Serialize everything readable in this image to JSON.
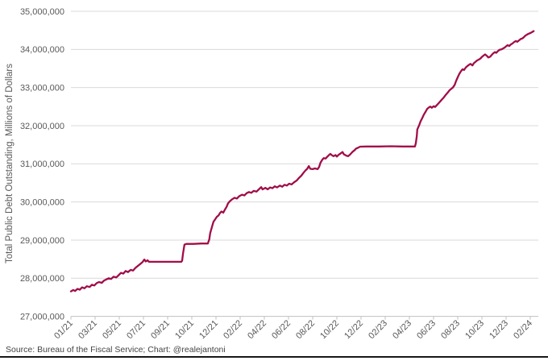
{
  "page": {
    "background": "#ffffff"
  },
  "footer": {
    "source_text": "Source: Bureau of the Fiscal Service; Chart: @realejantoni"
  },
  "chart": {
    "y_axis_title": "Total Public Debt Outstanding, Millions of Dollars",
    "y_ticks": [
      "35,000,000",
      "34,000,000",
      "33,000,000",
      "32,000,000",
      "31,000,000",
      "30,000,000",
      "29,000,000",
      "28,000,000",
      "27,000,000"
    ],
    "x_ticks": [
      "01/21",
      "03/21",
      "05/21",
      "07/21",
      "09/21",
      "10/21",
      "12/21",
      "02/22",
      "04/22",
      "06/22",
      "08/22",
      "10/22",
      "12/22",
      "02/23",
      "04/23",
      "06/23",
      "08/23",
      "10/23",
      "12/23",
      "02/24"
    ],
    "colors": {
      "line": "#a10d49",
      "grid": "#d9d9d9",
      "axis": "#c0c0c0",
      "tick_text": "#595959",
      "y_title_text": "#595959",
      "footer_text": "#444444",
      "bottom_rule": "#000000"
    }
  },
  "chart_data": {
    "type": "line",
    "title": "",
    "xlabel": "",
    "ylabel": "Total Public Debt Outstanding, Millions of Dollars",
    "unit": "millions of US dollars",
    "ylim": [
      27000000,
      35000000
    ],
    "y_tick_step": 1000000,
    "grid": "horizontal",
    "legend": "none",
    "x_tick_labels": [
      "01/21",
      "03/21",
      "05/21",
      "07/21",
      "09/21",
      "10/21",
      "12/21",
      "02/22",
      "04/22",
      "06/22",
      "08/22",
      "10/22",
      "12/22",
      "02/23",
      "04/23",
      "06/23",
      "08/23",
      "10/23",
      "12/23",
      "02/24"
    ],
    "values_at_ticks_millions": [
      27660000,
      27840000,
      28090000,
      28450000,
      28430000,
      28900000,
      29580000,
      30160000,
      30360000,
      30470000,
      30860000,
      31190000,
      31450000,
      31460000,
      31460000,
      32510000,
      33280000,
      33800000,
      34080000,
      34430000
    ],
    "value_scale_note": "series point v values are in trillions of dollars; multiply by 1,000,000 to get axis units (millions)",
    "series": [
      {
        "name": "Total Public Debt Outstanding",
        "points": [
          [
            0.0,
            27.655
          ],
          [
            0.005,
            27.69
          ],
          [
            0.009,
            27.665
          ],
          [
            0.014,
            27.72
          ],
          [
            0.019,
            27.7
          ],
          [
            0.024,
            27.76
          ],
          [
            0.029,
            27.735
          ],
          [
            0.034,
            27.79
          ],
          [
            0.04,
            27.77
          ],
          [
            0.045,
            27.83
          ],
          [
            0.05,
            27.81
          ],
          [
            0.055,
            27.87
          ],
          [
            0.06,
            27.9
          ],
          [
            0.066,
            27.88
          ],
          [
            0.071,
            27.94
          ],
          [
            0.076,
            27.97
          ],
          [
            0.081,
            28.0
          ],
          [
            0.086,
            27.98
          ],
          [
            0.091,
            28.04
          ],
          [
            0.097,
            28.02
          ],
          [
            0.102,
            28.08
          ],
          [
            0.107,
            28.14
          ],
          [
            0.112,
            28.12
          ],
          [
            0.117,
            28.19
          ],
          [
            0.122,
            28.16
          ],
          [
            0.128,
            28.22
          ],
          [
            0.133,
            28.2
          ],
          [
            0.138,
            28.27
          ],
          [
            0.143,
            28.32
          ],
          [
            0.148,
            28.37
          ],
          [
            0.153,
            28.42
          ],
          [
            0.157,
            28.49
          ],
          [
            0.16,
            28.44
          ],
          [
            0.164,
            28.47
          ],
          [
            0.167,
            28.43
          ],
          [
            0.176,
            28.43
          ],
          [
            0.193,
            28.43
          ],
          [
            0.21,
            28.43
          ],
          [
            0.228,
            28.43
          ],
          [
            0.236,
            28.43
          ],
          [
            0.238,
            28.46
          ],
          [
            0.24,
            28.66
          ],
          [
            0.243,
            28.88
          ],
          [
            0.247,
            28.9
          ],
          [
            0.262,
            28.9
          ],
          [
            0.279,
            28.91
          ],
          [
            0.293,
            28.91
          ],
          [
            0.296,
            29.02
          ],
          [
            0.298,
            29.18
          ],
          [
            0.302,
            29.36
          ],
          [
            0.305,
            29.48
          ],
          [
            0.309,
            29.55
          ],
          [
            0.312,
            29.61
          ],
          [
            0.316,
            29.65
          ],
          [
            0.319,
            29.71
          ],
          [
            0.322,
            29.75
          ],
          [
            0.326,
            29.72
          ],
          [
            0.329,
            29.79
          ],
          [
            0.333,
            29.87
          ],
          [
            0.336,
            29.96
          ],
          [
            0.34,
            30.02
          ],
          [
            0.345,
            30.07
          ],
          [
            0.35,
            30.11
          ],
          [
            0.355,
            30.09
          ],
          [
            0.36,
            30.15
          ],
          [
            0.366,
            30.19
          ],
          [
            0.371,
            30.17
          ],
          [
            0.376,
            30.23
          ],
          [
            0.381,
            30.26
          ],
          [
            0.386,
            30.24
          ],
          [
            0.391,
            30.29
          ],
          [
            0.397,
            30.27
          ],
          [
            0.402,
            30.33
          ],
          [
            0.407,
            30.39
          ],
          [
            0.41,
            30.33
          ],
          [
            0.416,
            30.37
          ],
          [
            0.421,
            30.33
          ],
          [
            0.426,
            30.38
          ],
          [
            0.431,
            30.36
          ],
          [
            0.436,
            30.41
          ],
          [
            0.441,
            30.38
          ],
          [
            0.447,
            30.43
          ],
          [
            0.452,
            30.4
          ],
          [
            0.457,
            30.45
          ],
          [
            0.462,
            30.43
          ],
          [
            0.467,
            30.48
          ],
          [
            0.472,
            30.46
          ],
          [
            0.478,
            30.52
          ],
          [
            0.483,
            30.56
          ],
          [
            0.488,
            30.63
          ],
          [
            0.493,
            30.69
          ],
          [
            0.498,
            30.77
          ],
          [
            0.502,
            30.83
          ],
          [
            0.505,
            30.86
          ],
          [
            0.509,
            30.94
          ],
          [
            0.512,
            30.87
          ],
          [
            0.517,
            30.86
          ],
          [
            0.522,
            30.88
          ],
          [
            0.528,
            30.86
          ],
          [
            0.531,
            30.92
          ],
          [
            0.534,
            31.03
          ],
          [
            0.538,
            31.11
          ],
          [
            0.541,
            31.15
          ],
          [
            0.545,
            31.14
          ],
          [
            0.548,
            31.18
          ],
          [
            0.552,
            31.23
          ],
          [
            0.555,
            31.26
          ],
          [
            0.559,
            31.22
          ],
          [
            0.562,
            31.2
          ],
          [
            0.566,
            31.23
          ],
          [
            0.569,
            31.19
          ],
          [
            0.572,
            31.23
          ],
          [
            0.578,
            31.28
          ],
          [
            0.581,
            31.31
          ],
          [
            0.584,
            31.25
          ],
          [
            0.59,
            31.21
          ],
          [
            0.593,
            31.2
          ],
          [
            0.597,
            31.24
          ],
          [
            0.6,
            31.28
          ],
          [
            0.603,
            31.32
          ],
          [
            0.607,
            31.36
          ],
          [
            0.61,
            31.4
          ],
          [
            0.614,
            31.42
          ],
          [
            0.619,
            31.45
          ],
          [
            0.633,
            31.455
          ],
          [
            0.659,
            31.455
          ],
          [
            0.684,
            31.46
          ],
          [
            0.71,
            31.455
          ],
          [
            0.736,
            31.455
          ],
          [
            0.738,
            31.54
          ],
          [
            0.74,
            31.73
          ],
          [
            0.741,
            31.9
          ],
          [
            0.745,
            32.01
          ],
          [
            0.748,
            32.11
          ],
          [
            0.752,
            32.21
          ],
          [
            0.755,
            32.29
          ],
          [
            0.759,
            32.37
          ],
          [
            0.762,
            32.44
          ],
          [
            0.766,
            32.48
          ],
          [
            0.769,
            32.5
          ],
          [
            0.772,
            32.47
          ],
          [
            0.776,
            32.51
          ],
          [
            0.779,
            32.49
          ],
          [
            0.783,
            32.54
          ],
          [
            0.786,
            32.58
          ],
          [
            0.791,
            32.65
          ],
          [
            0.797,
            32.73
          ],
          [
            0.802,
            32.81
          ],
          [
            0.807,
            32.88
          ],
          [
            0.81,
            32.93
          ],
          [
            0.814,
            32.97
          ],
          [
            0.817,
            33.0
          ],
          [
            0.821,
            33.07
          ],
          [
            0.824,
            33.17
          ],
          [
            0.828,
            33.28
          ],
          [
            0.831,
            33.36
          ],
          [
            0.834,
            33.42
          ],
          [
            0.838,
            33.48
          ],
          [
            0.841,
            33.46
          ],
          [
            0.845,
            33.53
          ],
          [
            0.848,
            33.56
          ],
          [
            0.852,
            33.6
          ],
          [
            0.855,
            33.62
          ],
          [
            0.859,
            33.58
          ],
          [
            0.862,
            33.64
          ],
          [
            0.866,
            33.68
          ],
          [
            0.869,
            33.71
          ],
          [
            0.872,
            33.73
          ],
          [
            0.876,
            33.76
          ],
          [
            0.879,
            33.8
          ],
          [
            0.883,
            33.84
          ],
          [
            0.886,
            33.87
          ],
          [
            0.89,
            33.83
          ],
          [
            0.893,
            33.79
          ],
          [
            0.897,
            33.81
          ],
          [
            0.9,
            33.85
          ],
          [
            0.903,
            33.89
          ],
          [
            0.907,
            33.93
          ],
          [
            0.91,
            33.91
          ],
          [
            0.914,
            33.96
          ],
          [
            0.917,
            33.99
          ],
          [
            0.921,
            34.0
          ],
          [
            0.924,
            34.02
          ],
          [
            0.928,
            34.05
          ],
          [
            0.931,
            34.08
          ],
          [
            0.934,
            34.11
          ],
          [
            0.938,
            34.09
          ],
          [
            0.941,
            34.13
          ],
          [
            0.945,
            34.16
          ],
          [
            0.948,
            34.19
          ],
          [
            0.952,
            34.22
          ],
          [
            0.955,
            34.2
          ],
          [
            0.959,
            34.24
          ],
          [
            0.962,
            34.27
          ],
          [
            0.966,
            34.29
          ],
          [
            0.969,
            34.32
          ],
          [
            0.972,
            34.36
          ],
          [
            0.976,
            34.39
          ],
          [
            0.979,
            34.41
          ],
          [
            0.983,
            34.43
          ],
          [
            0.986,
            34.45
          ],
          [
            0.99,
            34.48
          ]
        ]
      }
    ]
  }
}
